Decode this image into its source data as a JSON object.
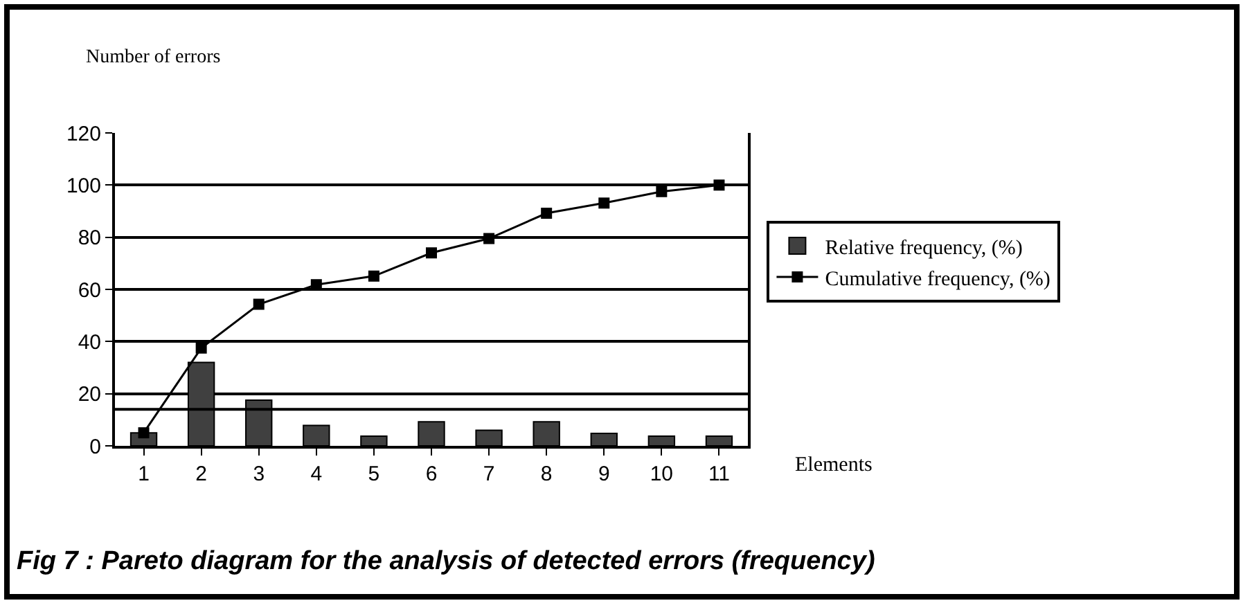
{
  "chart_data": {
    "type": "bar",
    "ylabel": "Number of errors",
    "xlabel": "Elements",
    "categories": [
      "1",
      "2",
      "3",
      "4",
      "5",
      "6",
      "7",
      "8",
      "9",
      "10",
      "11"
    ],
    "series": [
      {
        "name": "Relative frequency, (%)",
        "color": "#404040",
        "values": [
          5,
          32,
          17.5,
          7.8,
          3.7,
          9.2,
          6,
          9.2,
          4.8,
          3.7,
          3.7
        ]
      },
      {
        "name": "Cumulative frequency, (%)",
        "type": "line",
        "color": "#000000",
        "marker": "square",
        "line_style": "solid",
        "values": [
          5,
          37.5,
          54.3,
          61.8,
          65.1,
          74,
          79.5,
          89.2,
          93.1,
          97.5,
          100
        ]
      }
    ],
    "ylim": [
      0,
      120
    ],
    "yticks": [
      0,
      20,
      40,
      60,
      80,
      100,
      120
    ],
    "grid": "y",
    "legend": "right",
    "ref_lines": [
      {
        "axis": "y",
        "value": 14,
        "color": "#000000"
      }
    ],
    "annotations": [
      "Fig 7 : Pareto diagram for the analysis of detected errors (frequency)"
    ]
  }
}
